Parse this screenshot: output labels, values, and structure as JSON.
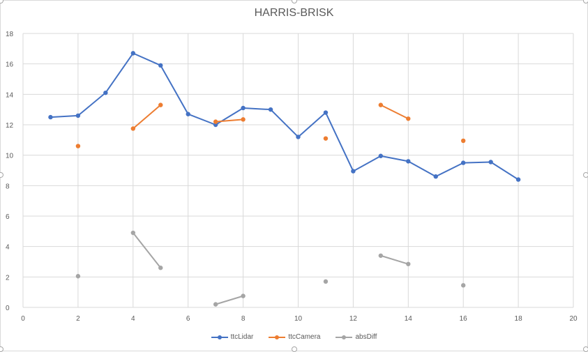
{
  "chart_data": {
    "type": "line",
    "title": "HARRIS-BRISK",
    "xlim": [
      0,
      20
    ],
    "ylim": [
      0,
      18
    ],
    "x_ticks": [
      0,
      2,
      4,
      6,
      8,
      10,
      12,
      14,
      16,
      18,
      20
    ],
    "y_ticks": [
      0,
      2,
      4,
      6,
      8,
      10,
      12,
      14,
      16,
      18
    ],
    "grid": true,
    "legend_position": "bottom",
    "series": [
      {
        "name": "ttcLidar",
        "color": "#4472c4",
        "points": [
          [
            1,
            12.5
          ],
          [
            2,
            12.6
          ],
          [
            3,
            14.1
          ],
          [
            4,
            16.7
          ],
          [
            5,
            15.9
          ],
          [
            6,
            12.7
          ],
          [
            7,
            12.0
          ],
          [
            8,
            13.1
          ],
          [
            9,
            13.0
          ],
          [
            10,
            11.2
          ],
          [
            11,
            12.8
          ],
          [
            12,
            8.95
          ],
          [
            13,
            9.95
          ],
          [
            14,
            9.6
          ],
          [
            15,
            8.6
          ],
          [
            16,
            9.5
          ],
          [
            17,
            9.55
          ],
          [
            18,
            8.4
          ]
        ]
      },
      {
        "name": "ttcCamera",
        "color": "#ed7d31",
        "points": [
          [
            2,
            10.6
          ],
          null,
          [
            4,
            11.75
          ],
          [
            5,
            13.3
          ],
          null,
          [
            7,
            12.2
          ],
          [
            8,
            12.35
          ],
          null,
          [
            11,
            11.1
          ],
          null,
          [
            13,
            13.3
          ],
          [
            14,
            12.4
          ],
          null,
          [
            16,
            10.95
          ]
        ]
      },
      {
        "name": "absDiff",
        "color": "#a5a5a5",
        "points": [
          [
            2,
            2.05
          ],
          null,
          [
            4,
            4.9
          ],
          [
            5,
            2.6
          ],
          null,
          [
            7,
            0.2
          ],
          [
            8,
            0.75
          ],
          null,
          [
            11,
            1.7
          ],
          null,
          [
            13,
            3.4
          ],
          [
            14,
            2.85
          ],
          null,
          [
            16,
            1.45
          ]
        ]
      }
    ]
  }
}
